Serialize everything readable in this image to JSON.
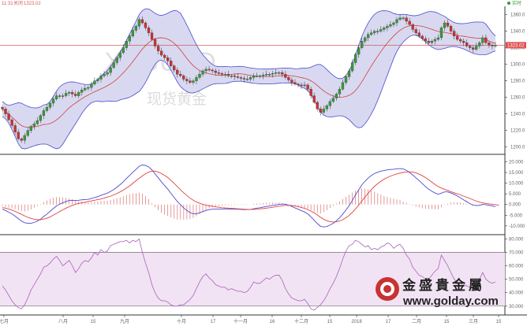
{
  "header": {
    "time": "11:31",
    "label": "关闭",
    "price": "1323.02",
    "status": "实时"
  },
  "colors": {
    "up": "#3a9a3a",
    "down": "#d03030",
    "band_fill": "#d8d9f0",
    "band_line": "#4a4ad0",
    "mid_line": "#d04040",
    "macd_dif": "#4a4ad0",
    "macd_dea": "#e04040",
    "rsi_line": "#b070c0",
    "rsi_zone": "#f2e3f4",
    "price_line": "#d04040",
    "price_badge": "#e05050"
  },
  "watermark": {
    "symbol": "XAUUSD",
    "text": "现货黄金"
  },
  "logo": {
    "name": "金盛貴金屬",
    "url": "www.golday.com"
  },
  "price_axis": {
    "ticks": [
      "1360.0",
      "1340.0",
      "1320.0",
      "1300.0",
      "1280.0",
      "1260.0",
      "1240.0",
      "1220.0",
      "1200.0"
    ],
    "current": "1323.02"
  },
  "macd_axis": {
    "ticks": [
      "20.000",
      "15.000",
      "10.000",
      "5.000",
      "0.000",
      "-5.000",
      "-10.000"
    ]
  },
  "rsi_axis": {
    "ticks": [
      "80.000",
      "70.000",
      "60.000",
      "50.000",
      "40.000",
      "30.000"
    ]
  },
  "x_axis": {
    "labels": [
      "七月",
      "八月",
      "15",
      "九月",
      "十月",
      "17",
      "十一月",
      "16",
      "十二月",
      "15",
      "2018",
      "17",
      "二月",
      "15",
      "三月",
      "15"
    ]
  },
  "chart_data": [
    {
      "type": "candlestick",
      "title": "",
      "ylim": [
        1195,
        1370
      ],
      "close": [
        1246,
        1240,
        1233,
        1226,
        1218,
        1210,
        1208,
        1214,
        1220,
        1225,
        1228,
        1232,
        1238,
        1244,
        1248,
        1253,
        1258,
        1262,
        1262,
        1262,
        1265,
        1266,
        1264,
        1262,
        1266,
        1269,
        1271,
        1272,
        1276,
        1280,
        1282,
        1286,
        1288,
        1290,
        1296,
        1302,
        1308,
        1314,
        1320,
        1328,
        1334,
        1341,
        1346,
        1354,
        1350,
        1344,
        1338,
        1330,
        1322,
        1316,
        1311,
        1308,
        1304,
        1298,
        1293,
        1288,
        1286,
        1282,
        1280,
        1278,
        1280,
        1284,
        1288,
        1292,
        1294,
        1293,
        1292,
        1290,
        1289,
        1288,
        1288,
        1286,
        1286,
        1285,
        1284,
        1283,
        1282,
        1282,
        1284,
        1286,
        1286,
        1286,
        1287,
        1288,
        1288,
        1289,
        1290,
        1290,
        1288,
        1284,
        1281,
        1278,
        1276,
        1275,
        1274,
        1275,
        1270,
        1262,
        1254,
        1246,
        1242,
        1246,
        1250,
        1255,
        1259,
        1264,
        1270,
        1278,
        1285,
        1292,
        1302,
        1312,
        1320,
        1328,
        1332,
        1336,
        1338,
        1340,
        1340,
        1342,
        1344,
        1346,
        1348,
        1350,
        1354,
        1356,
        1356,
        1352,
        1348,
        1342,
        1338,
        1334,
        1331,
        1328,
        1326,
        1328,
        1330,
        1332,
        1344,
        1350,
        1346,
        1340,
        1334,
        1330,
        1328,
        1326,
        1322,
        1320,
        1318,
        1322,
        1326,
        1332,
        1326,
        1323,
        1322,
        1323
      ]
    },
    {
      "type": "line",
      "title": "",
      "ylim": [
        -13,
        22
      ],
      "series": [
        {
          "values": [
            -2.1,
            -2.8,
            -3.6,
            -4.4,
            -5.4,
            -6.6,
            -7.7,
            -8.5,
            -8.8,
            -8.8,
            -8.4,
            -7.8,
            -6.9,
            -5.6,
            -4.5,
            -3.2,
            -1.9,
            -0.7,
            0.2,
            0.8,
            1.4,
            1.9,
            2.0,
            1.9,
            2.0,
            2.2,
            2.3,
            2.4,
            2.8,
            3.3,
            3.7,
            4.3,
            4.8,
            5.3,
            6.1,
            7.0,
            8.1,
            9.3,
            10.6,
            12.2,
            13.6,
            15.1,
            16.4,
            17.9,
            18.5,
            18.3,
            17.6,
            16.2,
            14.4,
            12.5,
            10.6,
            8.9,
            7.2,
            5.2,
            3.3,
            1.4,
            -0.1,
            -1.6,
            -2.8,
            -3.8,
            -4.3,
            -4.3,
            -3.9,
            -3.3,
            -2.8,
            -2.4,
            -2.2,
            -2.1,
            -2.1,
            -2.1,
            -2.0,
            -2.1,
            -2.1,
            -2.2,
            -2.2,
            -2.3,
            -2.4,
            -2.4,
            -2.3,
            -2.0,
            -1.7,
            -1.5,
            -1.2,
            -0.9,
            -0.7,
            -0.4,
            -0.2,
            0.1,
            0.2,
            0.1,
            -0.3,
            -0.9,
            -1.6,
            -2.2,
            -2.9,
            -3.5,
            -4.4,
            -5.8,
            -7.3,
            -8.9,
            -10.2,
            -10.5,
            -10.3,
            -9.6,
            -8.8,
            -7.6,
            -6.2,
            -4.5,
            -2.6,
            -0.6,
            1.9,
            4.5,
            6.8,
            9.2,
            10.9,
            12.4,
            13.6,
            14.5,
            15.1,
            15.6,
            15.9,
            16.2,
            16.4,
            16.5,
            16.7,
            16.8,
            16.7,
            16.0,
            15.0,
            13.8,
            12.5,
            11.2,
            9.8,
            8.4,
            7.2,
            6.2,
            5.4,
            4.8,
            5.3,
            5.9,
            5.9,
            5.4,
            4.8,
            4.0,
            3.1,
            2.2,
            1.3,
            0.4,
            -0.3,
            -0.5,
            -0.4,
            0.1,
            -0.1,
            -0.4,
            -0.7,
            -1.0
          ]
        },
        {
          "values": [
            -1.4,
            -1.7,
            -2.1,
            -2.6,
            -3.2,
            -3.9,
            -4.6,
            -5.3,
            -6.0,
            -6.5,
            -6.9,
            -7.1,
            -7.1,
            -6.8,
            -6.4,
            -5.8,
            -5.0,
            -4.2,
            -3.3,
            -2.5,
            -1.7,
            -1.0,
            -0.4,
            0.1,
            0.5,
            0.8,
            1.1,
            1.4,
            1.7,
            2.0,
            2.3,
            2.6,
            3.0,
            3.5,
            3.9,
            4.5,
            5.2,
            5.9,
            6.7,
            7.7,
            8.7,
            9.9,
            11.1,
            12.3,
            13.4,
            14.4,
            15.1,
            15.6,
            15.6,
            15.2,
            14.5,
            13.6,
            12.6,
            11.3,
            9.9,
            8.4,
            6.9,
            5.5,
            4.2,
            3.0,
            2.0,
            1.2,
            0.6,
            0.1,
            -0.3,
            -0.6,
            -0.8,
            -1.1,
            -1.3,
            -1.5,
            -1.6,
            -1.7,
            -1.8,
            -1.9,
            -2.0,
            -2.1,
            -2.2,
            -2.3,
            -2.3,
            -2.3,
            -2.2,
            -2.0,
            -1.9,
            -1.7,
            -1.5,
            -1.3,
            -1.0,
            -0.8,
            -0.6,
            -0.4,
            -0.4,
            -0.5,
            -0.7,
            -1.0,
            -1.4,
            -1.8,
            -2.4,
            -3.1,
            -3.9,
            -4.9,
            -6.0,
            -6.9,
            -7.6,
            -8.0,
            -8.2,
            -8.1,
            -7.7,
            -7.1,
            -6.2,
            -5.1,
            -3.7,
            -2.1,
            -0.3,
            1.6,
            3.5,
            5.3,
            7.0,
            8.5,
            9.8,
            10.9,
            11.9,
            12.6,
            13.3,
            13.8,
            14.3,
            14.7,
            15.0,
            15.2,
            15.3,
            15.2,
            14.8,
            14.2,
            13.5,
            12.6,
            11.6,
            10.5,
            9.4,
            8.4,
            7.7,
            7.1,
            6.6,
            6.0,
            5.5,
            5.0,
            4.5,
            3.9,
            3.4,
            2.8,
            2.2,
            1.6,
            1.1,
            0.8,
            0.5,
            0.3,
            0.1,
            -0.1,
            -0.3
          ]
        },
        {
          "values": [
            -0.7,
            -1.1,
            -1.5,
            -1.8,
            -2.2,
            -2.7,
            -3.1,
            -3.2,
            -2.8,
            -2.3,
            -1.5,
            -0.7,
            0.2,
            1.2,
            1.9,
            2.6,
            3.1,
            3.5,
            3.5,
            3.3,
            3.1,
            2.9,
            2.4,
            1.8,
            1.5,
            1.4,
            1.2,
            1.0,
            1.1,
            1.3,
            1.4,
            1.7,
            1.8,
            1.8,
            2.2,
            2.5,
            2.9,
            3.4,
            3.9,
            4.5,
            4.9,
            5.2,
            5.3,
            5.6,
            5.1,
            3.9,
            2.5,
            0.6,
            -1.2,
            -2.7,
            -3.9,
            -4.7,
            -5.4,
            -6.1,
            -6.6,
            -7.0,
            -7.0,
            -7.1,
            -7.0,
            -6.8,
            -6.3,
            -5.5,
            -4.5,
            -3.4,
            -2.5,
            -1.8,
            -1.4,
            -1.0,
            -0.8,
            -0.6,
            -0.4,
            -0.4,
            -0.3,
            -0.3,
            -0.2,
            -0.2,
            -0.2,
            -0.1,
            0.0,
            0.3,
            0.5,
            0.5,
            0.7,
            0.8,
            0.8,
            0.9,
            0.8,
            0.9,
            0.8,
            0.5,
            0.1,
            -0.4,
            -0.9,
            -1.2,
            -1.5,
            -1.7,
            -2.0,
            -2.7,
            -3.4,
            -4.0,
            -4.2,
            -3.6,
            -2.7,
            -1.6,
            -0.6,
            0.5,
            1.5,
            2.6,
            3.6,
            4.5,
            5.6,
            6.6,
            7.1,
            7.6,
            7.4,
            7.1,
            6.6,
            6.0,
            5.3,
            4.7,
            4.0,
            3.6,
            3.1,
            2.7,
            2.4,
            2.1,
            1.4,
            0.8,
            0.2,
            -0.4,
            -1.0,
            -1.4,
            -1.8,
            -2.1,
            -2.2,
            -2.2,
            -2.3,
            -2.3,
            -1.3,
            -0.2,
            0.4,
            0.9,
            1.0,
            1.1,
            0.9,
            0.6,
            0.3,
            -0.1,
            -0.5,
            -0.6,
            -0.6,
            -0.4,
            -0.2,
            -0.2,
            -0.3,
            -0.3,
            -0.4
          ]
        }
      ]
    },
    {
      "type": "line",
      "title": "",
      "ylim": [
        24,
        82
      ],
      "series": [
        {
          "values": [
            45,
            42,
            38,
            34,
            31,
            29,
            28,
            31,
            36,
            42,
            46,
            50,
            54,
            59,
            60,
            62,
            65,
            67,
            64,
            60,
            62,
            64,
            60,
            55,
            58,
            62,
            64,
            63,
            66,
            70,
            68,
            72,
            70,
            71,
            75,
            76,
            77,
            78,
            78,
            79,
            77,
            79,
            78,
            80,
            70,
            62,
            55,
            46,
            40,
            36,
            34,
            34,
            33,
            31,
            30,
            30,
            31,
            31,
            33,
            35,
            38,
            43,
            48,
            52,
            54,
            51,
            49,
            46,
            45,
            44,
            44,
            42,
            43,
            42,
            41,
            41,
            40,
            41,
            44,
            48,
            47,
            47,
            49,
            51,
            50,
            52,
            53,
            53,
            49,
            43,
            39,
            36,
            35,
            34,
            34,
            35,
            32,
            28,
            27,
            29,
            31,
            34,
            38,
            43,
            47,
            52,
            58,
            65,
            71,
            75,
            76,
            79,
            78,
            76,
            74,
            75,
            72,
            73,
            72,
            74,
            75,
            77,
            76,
            73,
            75,
            76,
            73,
            68,
            65,
            59,
            56,
            53,
            52,
            50,
            50,
            53,
            56,
            58,
            68,
            64,
            60,
            55,
            50,
            48,
            47,
            46,
            45,
            44,
            44,
            47,
            50,
            55,
            50,
            48,
            47,
            48
          ]
        }
      ]
    }
  ]
}
